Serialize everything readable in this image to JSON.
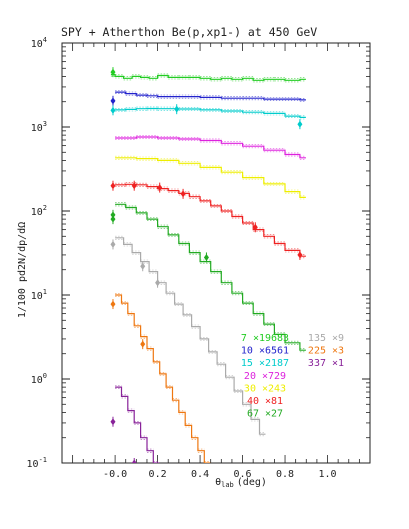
{
  "chart_data": {
    "type": "line",
    "title": "SPY + Atherthon Be(p,xp1-) at 450 GeV",
    "ylabel": "1/100 pd2N/dp/dΩ",
    "xlabel": "θlab (deg)",
    "xlabel_main": "θ",
    "xlabel_sub": "lab",
    "xlabel_unit": "(deg)",
    "xlim": [
      -0.25,
      1.2
    ],
    "ylim": [
      0.1,
      10000
    ],
    "yscale": "log",
    "grid": false,
    "x_ticks": [
      {
        "value": 0.0,
        "label": "-0.0"
      },
      {
        "value": 0.2,
        "label": "0.2"
      },
      {
        "value": 0.4,
        "label": "0.4"
      },
      {
        "value": 0.6,
        "label": "0.6"
      },
      {
        "value": 0.8,
        "label": "0.8"
      },
      {
        "value": 1.0,
        "label": "1.0"
      }
    ],
    "y_ticks": [
      {
        "value": 0.1,
        "base": "10",
        "exp": "-1"
      },
      {
        "value": 1,
        "base": "10",
        "exp": "0"
      },
      {
        "value": 10,
        "base": "10",
        "exp": "1"
      },
      {
        "value": 100,
        "base": "10",
        "exp": "2"
      },
      {
        "value": 1000,
        "base": "10",
        "exp": "3"
      },
      {
        "value": 10000,
        "base": "10",
        "exp": "4"
      }
    ],
    "series": [
      {
        "name": "7 ×19683",
        "color": "#22cc22",
        "x": [
          -0.02,
          0.0,
          0.04,
          0.08,
          0.12,
          0.16,
          0.2,
          0.25,
          0.3,
          0.35,
          0.4,
          0.45,
          0.5,
          0.55,
          0.6,
          0.65,
          0.7,
          0.75,
          0.8,
          0.87
        ],
        "y": [
          4200,
          4000,
          3800,
          4000,
          3900,
          3800,
          4100,
          3900,
          3900,
          3900,
          3800,
          3700,
          3800,
          3700,
          3800,
          3600,
          3700,
          3700,
          3600,
          3700
        ],
        "points": [
          {
            "x": -0.01,
            "y": 4500
          }
        ]
      },
      {
        "name": "10 ×6561",
        "color": "#2222cc",
        "x": [
          0.0,
          0.05,
          0.1,
          0.15,
          0.2,
          0.3,
          0.4,
          0.5,
          0.6,
          0.7,
          0.87
        ],
        "y": [
          2600,
          2500,
          2400,
          2350,
          2300,
          2300,
          2250,
          2200,
          2200,
          2150,
          2100
        ],
        "points": [
          {
            "x": -0.01,
            "y": 2050
          }
        ]
      },
      {
        "name": "15 ×2187",
        "color": "#00cccc",
        "x": [
          0.0,
          0.05,
          0.1,
          0.15,
          0.2,
          0.3,
          0.4,
          0.5,
          0.6,
          0.7,
          0.8,
          0.87
        ],
        "y": [
          1600,
          1620,
          1650,
          1660,
          1650,
          1640,
          1600,
          1550,
          1500,
          1450,
          1350,
          1300
        ],
        "points": [
          {
            "x": -0.01,
            "y": 1580
          },
          {
            "x": 0.29,
            "y": 1630
          },
          {
            "x": 0.87,
            "y": 1080
          }
        ]
      },
      {
        "name": "20 ×729",
        "color": "#dd22dd",
        "x": [
          0.0,
          0.1,
          0.2,
          0.3,
          0.4,
          0.5,
          0.6,
          0.7,
          0.8,
          0.87
        ],
        "y": [
          740,
          760,
          740,
          720,
          690,
          640,
          590,
          530,
          470,
          430
        ],
        "points": []
      },
      {
        "name": "30 ×243",
        "color": "#eeee00",
        "x": [
          0.0,
          0.1,
          0.2,
          0.3,
          0.4,
          0.5,
          0.6,
          0.7,
          0.8,
          0.87
        ],
        "y": [
          430,
          420,
          400,
          370,
          330,
          290,
          250,
          210,
          170,
          145
        ],
        "points": []
      },
      {
        "name": "40 ×81",
        "color": "#ee2222",
        "x": [
          0.0,
          0.05,
          0.1,
          0.15,
          0.2,
          0.25,
          0.3,
          0.35,
          0.4,
          0.45,
          0.5,
          0.55,
          0.6,
          0.65,
          0.7,
          0.75,
          0.8,
          0.87
        ],
        "y": [
          205,
          208,
          205,
          195,
          185,
          175,
          162,
          148,
          132,
          115,
          100,
          86,
          72,
          60,
          50,
          41,
          34,
          29
        ],
        "points": [
          {
            "x": -0.01,
            "y": 200
          },
          {
            "x": 0.09,
            "y": 200
          },
          {
            "x": 0.21,
            "y": 190
          },
          {
            "x": 0.32,
            "y": 160
          },
          {
            "x": 0.66,
            "y": 64
          },
          {
            "x": 0.87,
            "y": 30
          }
        ]
      },
      {
        "name": "67 ×27",
        "color": "#22aa22",
        "x": [
          0.0,
          0.05,
          0.1,
          0.15,
          0.2,
          0.25,
          0.3,
          0.35,
          0.4,
          0.45,
          0.5,
          0.55,
          0.6,
          0.65,
          0.7,
          0.75,
          0.8,
          0.87
        ],
        "y": [
          120,
          110,
          95,
          80,
          65,
          52,
          41,
          32,
          25,
          19,
          14,
          10.5,
          8,
          6,
          4.5,
          3.4,
          2.7,
          2.2
        ],
        "points": [
          {
            "x": -0.01,
            "y": 90
          },
          {
            "x": -0.01,
            "y": 80
          },
          {
            "x": 0.43,
            "y": 28
          }
        ]
      },
      {
        "name": "135 ×9",
        "color": "#aaaaaa",
        "x": [
          0.0,
          0.04,
          0.08,
          0.12,
          0.16,
          0.2,
          0.24,
          0.28,
          0.32,
          0.36,
          0.4,
          0.44,
          0.48,
          0.52,
          0.56,
          0.6,
          0.64,
          0.68
        ],
        "y": [
          48,
          40,
          32,
          25,
          19,
          14,
          10.5,
          7.8,
          5.8,
          4.2,
          3.0,
          2.1,
          1.5,
          1.05,
          0.72,
          0.5,
          0.33,
          0.22
        ],
        "points": [
          {
            "x": -0.01,
            "y": 40
          },
          {
            "x": 0.13,
            "y": 22
          },
          {
            "x": 0.2,
            "y": 14
          }
        ]
      },
      {
        "name": "225 ×3",
        "color": "#ee7711",
        "x": [
          0.0,
          0.03,
          0.06,
          0.09,
          0.12,
          0.15,
          0.18,
          0.21,
          0.24,
          0.27,
          0.3,
          0.33,
          0.36,
          0.39,
          0.42
        ],
        "y": [
          10,
          8,
          6,
          4.3,
          3.2,
          2.3,
          1.6,
          1.15,
          0.8,
          0.56,
          0.4,
          0.28,
          0.2,
          0.14,
          0.1
        ],
        "points": [
          {
            "x": -0.01,
            "y": 7.8
          },
          {
            "x": 0.13,
            "y": 2.6
          }
        ]
      },
      {
        "name": "337 ×1",
        "color": "#882299",
        "x": [
          0.0,
          0.03,
          0.06,
          0.09,
          0.12,
          0.15,
          0.18
        ],
        "y": [
          0.8,
          0.62,
          0.42,
          0.3,
          0.2,
          0.14,
          0.1
        ],
        "points": [
          {
            "x": -0.01,
            "y": 0.31
          },
          {
            "x": 0.09,
            "y": 0.1
          }
        ]
      }
    ],
    "legend": {
      "placement": "bottom-right",
      "columns": [
        [
          {
            "series": 0,
            "number": "7",
            "factor": "×19683"
          },
          {
            "series": 1,
            "number": "10",
            "factor": "×6561"
          },
          {
            "series": 2,
            "number": "15",
            "factor": "×2187"
          },
          {
            "series": 3,
            "number": "20",
            "factor": "×729"
          },
          {
            "series": 4,
            "number": "30",
            "factor": "×243"
          },
          {
            "series": 5,
            "number": "40",
            "factor": "×81"
          },
          {
            "series": 6,
            "number": "67",
            "factor": "×27"
          }
        ],
        [
          {
            "series": 7,
            "number": "135",
            "factor": "×9"
          },
          {
            "series": 8,
            "number": "225",
            "factor": "×3"
          },
          {
            "series": 9,
            "number": "337",
            "factor": "×1"
          }
        ]
      ]
    }
  }
}
